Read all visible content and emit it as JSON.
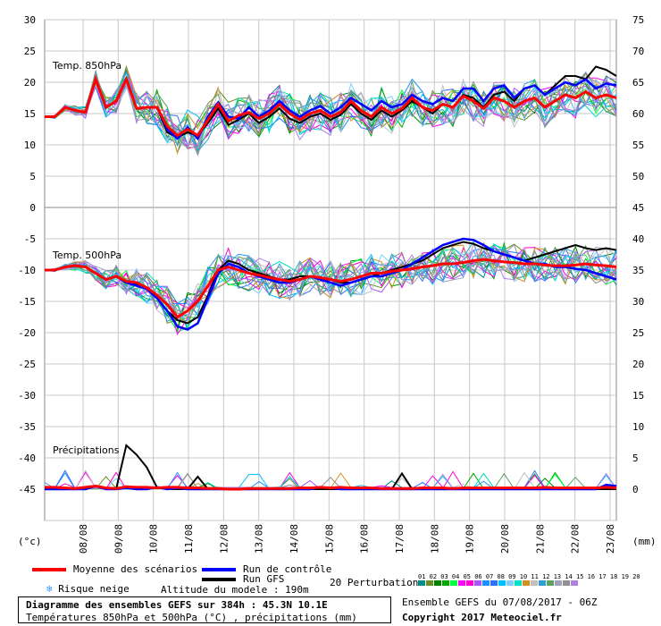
{
  "colors": {
    "mean": "#ff0000",
    "control": "#0000ff",
    "gfs": "#000000",
    "grid": "#c8c8c8",
    "perturbations": [
      "#008b8b",
      "#6b8e23",
      "#008000",
      "#00aa00",
      "#00ff40",
      "#ff00ff",
      "#ff00cc",
      "#aa55ff",
      "#1e90ff",
      "#2f6fff",
      "#00bfff",
      "#7fd0ff",
      "#00e0c0",
      "#d09020",
      "#c0c0c0",
      "#2aa0d0",
      "#60a060",
      "#a0a0c0",
      "#909090",
      "#b080e0"
    ]
  },
  "chart_data": {
    "type": "line",
    "x_ticks": [
      "08/08",
      "09/08",
      "10/08",
      "11/08",
      "12/08",
      "13/08",
      "14/08",
      "15/08",
      "16/08",
      "17/08",
      "18/08",
      "19/08",
      "20/08",
      "21/08",
      "22/08",
      "23/08"
    ],
    "left_axis_ticks": [
      "30",
      "25",
      "20",
      "15",
      "10",
      "5",
      "0",
      "-5",
      "-10",
      "-15",
      "-20",
      "-25",
      "-30",
      "-35",
      "-40",
      "-45"
    ],
    "right_axis_ticks_850": [
      "75",
      "70",
      "65",
      "60",
      "55",
      "50"
    ],
    "right_axis_ticks_500": [
      "45",
      "40",
      "35",
      "30",
      "25",
      "20",
      "15",
      "10",
      "5",
      "0"
    ],
    "left_axis_unit": "(°c)",
    "right_axis_unit": "(mm)",
    "panels": [
      {
        "label": "Temp. 850hPa",
        "unit": "°C",
        "mean": [
          14.5,
          14.5,
          16.0,
          15.5,
          15.2,
          20.5,
          16.0,
          17.0,
          20.5,
          15.8,
          16.0,
          16.0,
          13.0,
          11.5,
          12.5,
          11.5,
          14.0,
          16.5,
          13.8,
          14.7,
          15.2,
          14.2,
          15.0,
          16.5,
          15.0,
          14.0,
          15.0,
          15.5,
          14.5,
          15.2,
          17.0,
          15.5,
          14.5,
          16.0,
          15.0,
          15.8,
          17.5,
          16.0,
          15.5,
          16.5,
          16.0,
          17.8,
          17.0,
          15.8,
          17.5,
          17.0,
          16.0,
          17.0,
          17.5,
          16.0,
          17.0,
          18.0,
          17.5,
          18.5,
          17.5,
          18.0,
          17.5
        ],
        "control": [
          14.5,
          14.5,
          16.0,
          15.5,
          15.2,
          20.5,
          16.0,
          17.0,
          20.5,
          15.8,
          16.0,
          16.0,
          12.5,
          11.0,
          12.8,
          11.0,
          14.5,
          16.8,
          14.5,
          14.2,
          16.0,
          14.5,
          15.5,
          17.0,
          15.5,
          14.5,
          15.5,
          16.2,
          15.0,
          16.0,
          17.5,
          16.5,
          15.5,
          17.0,
          16.0,
          16.5,
          18.0,
          17.0,
          16.5,
          17.5,
          17.0,
          19.0,
          19.0,
          17.0,
          19.0,
          19.5,
          17.5,
          19.0,
          19.5,
          18.0,
          19.0,
          20.0,
          19.5,
          20.5,
          19.0,
          19.8,
          19.5
        ],
        "gfs": [
          14.5,
          14.5,
          16.0,
          15.5,
          15.2,
          20.5,
          16.0,
          17.0,
          20.5,
          15.8,
          16.0,
          16.0,
          12.0,
          11.2,
          12.0,
          11.5,
          13.5,
          15.8,
          13.2,
          14.0,
          15.0,
          13.5,
          14.5,
          15.8,
          14.2,
          13.5,
          14.5,
          15.0,
          14.0,
          14.8,
          16.5,
          15.0,
          14.0,
          15.5,
          14.5,
          15.5,
          17.0,
          16.0,
          15.0,
          16.5,
          16.0,
          18.0,
          17.5,
          16.0,
          18.0,
          18.5,
          17.0,
          19.0,
          19.5,
          18.0,
          19.5,
          21.0,
          21.0,
          20.5,
          22.5,
          22.0,
          21.0
        ]
      },
      {
        "label": "Temp. 500hPa",
        "unit": "°C",
        "mean": [
          -10.0,
          -10.0,
          -9.5,
          -9.3,
          -9.5,
          -10.5,
          -11.5,
          -11.0,
          -11.8,
          -12.0,
          -12.8,
          -14.0,
          -15.5,
          -17.5,
          -16.5,
          -15.0,
          -12.5,
          -10.0,
          -9.5,
          -10.0,
          -10.5,
          -10.8,
          -11.2,
          -11.5,
          -11.8,
          -11.5,
          -11.0,
          -11.2,
          -11.5,
          -11.8,
          -11.5,
          -11.0,
          -10.5,
          -10.5,
          -10.2,
          -10.0,
          -9.8,
          -9.5,
          -9.3,
          -9.0,
          -9.0,
          -8.8,
          -8.5,
          -8.3,
          -8.5,
          -8.7,
          -8.8,
          -9.0,
          -9.0,
          -9.2,
          -9.3,
          -9.3,
          -9.2,
          -9.0,
          -9.2,
          -9.3,
          -9.5
        ],
        "control": [
          -10.0,
          -10.0,
          -9.5,
          -9.3,
          -9.5,
          -10.5,
          -11.5,
          -11.0,
          -12.0,
          -12.5,
          -13.0,
          -14.5,
          -16.5,
          -19.0,
          -19.5,
          -18.5,
          -14.5,
          -10.5,
          -9.0,
          -9.5,
          -10.5,
          -11.0,
          -11.5,
          -12.0,
          -12.0,
          -11.5,
          -11.0,
          -11.5,
          -12.0,
          -12.5,
          -12.0,
          -11.5,
          -11.0,
          -11.0,
          -10.5,
          -10.0,
          -9.0,
          -8.0,
          -7.0,
          -6.0,
          -5.5,
          -5.0,
          -5.2,
          -6.0,
          -7.0,
          -7.5,
          -8.0,
          -8.5,
          -9.0,
          -9.0,
          -9.5,
          -9.5,
          -9.8,
          -10.0,
          -10.5,
          -11.0,
          -11.5
        ],
        "gfs": [
          -10.0,
          -10.0,
          -9.5,
          -9.3,
          -9.5,
          -10.5,
          -11.5,
          -11.0,
          -11.8,
          -12.3,
          -13.0,
          -14.5,
          -16.5,
          -18.0,
          -18.5,
          -17.5,
          -14.0,
          -10.0,
          -8.5,
          -9.0,
          -10.0,
          -10.5,
          -11.0,
          -11.5,
          -11.5,
          -11.0,
          -11.0,
          -11.5,
          -11.5,
          -12.0,
          -12.0,
          -11.5,
          -11.0,
          -10.5,
          -10.0,
          -9.5,
          -9.0,
          -8.5,
          -7.5,
          -6.5,
          -6.0,
          -5.5,
          -5.8,
          -6.5,
          -7.0,
          -7.5,
          -8.0,
          -8.5,
          -8.0,
          -7.5,
          -7.0,
          -6.5,
          -6.0,
          -6.5,
          -6.8,
          -6.5,
          -6.8
        ]
      },
      {
        "label": "Précipitations",
        "unit": "mm",
        "mean": [
          0.3,
          0.3,
          0.2,
          0.1,
          0.3,
          0.5,
          0.2,
          0.1,
          0.4,
          0.3,
          0.3,
          0.2,
          0.3,
          0.3,
          0.2,
          0.2,
          0.1,
          0.1,
          0.0,
          0.0,
          0.1,
          0.1,
          0.1,
          0.1,
          0.1,
          0.2,
          0.2,
          0.3,
          0.2,
          0.3,
          0.2,
          0.2,
          0.2,
          0.1,
          0.1,
          0.1,
          0.1,
          0.2,
          0.2,
          0.2,
          0.1,
          0.2,
          0.2,
          0.2,
          0.2,
          0.2,
          0.2,
          0.2,
          0.2,
          0.3,
          0.2,
          0.2,
          0.2,
          0.2,
          0.2,
          0.3,
          0.2
        ],
        "control": [
          0.0,
          0.0,
          0.0,
          0.0,
          0.0,
          0.5,
          0.0,
          0.0,
          0.2,
          0.0,
          0.0,
          0.3,
          0.0,
          0.2,
          0.0,
          0.0,
          0.0,
          0.0,
          0.0,
          0.0,
          0.0,
          0.0,
          0.0,
          0.0,
          0.0,
          0.0,
          0.0,
          0.3,
          0.2,
          0.0,
          0.0,
          0.0,
          0.0,
          0.0,
          0.0,
          0.0,
          0.0,
          0.0,
          0.0,
          0.0,
          0.0,
          0.0,
          0.0,
          0.0,
          0.0,
          0.0,
          0.0,
          0.0,
          0.0,
          0.0,
          0.0,
          0.0,
          0.0,
          0.0,
          0.0,
          0.7,
          0.5
        ],
        "gfs": [
          0.0,
          0.0,
          0.0,
          0.0,
          0.0,
          0.5,
          0.0,
          0.0,
          7.0,
          5.5,
          3.5,
          0.3,
          0.0,
          0.0,
          0.0,
          2.0,
          0.0,
          0.0,
          0.0,
          0.0,
          0.0,
          0.0,
          0.0,
          0.0,
          0.0,
          0.0,
          0.0,
          0.0,
          0.0,
          0.0,
          0.0,
          0.0,
          0.0,
          0.0,
          0.0,
          2.5,
          0.0,
          0.0,
          0.0,
          0.0,
          0.0,
          0.0,
          0.0,
          0.0,
          0.0,
          0.0,
          0.0,
          0.0,
          0.0,
          0.0,
          0.0,
          0.0,
          0.0,
          0.0,
          0.0,
          0.0,
          0.0
        ]
      }
    ]
  },
  "legend": {
    "mean_label": "Moyenne des scénarios",
    "control_label": "Run de contrôle",
    "gfs_label": "Run GFS",
    "snow_label": "Risque neige",
    "altitude_label": "Altitude du modele : 190m",
    "perturbations_label": "20 Perturbations",
    "perturbation_numbers": "01 02 03 04 05 06 07 08 09 10 11 12 13 14 15 16 17 18 19 20"
  },
  "footer": {
    "title": "Diagramme des ensembles GEFS sur 384h : 45.3N 10.1E",
    "subtitle": "Températures 850hPa et 500hPa (°C) , précipitations (mm)",
    "ensemble": "Ensemble GEFS du 07/08/2017 - 06Z",
    "copyright": "Copyright 2017 Meteociel.fr"
  }
}
